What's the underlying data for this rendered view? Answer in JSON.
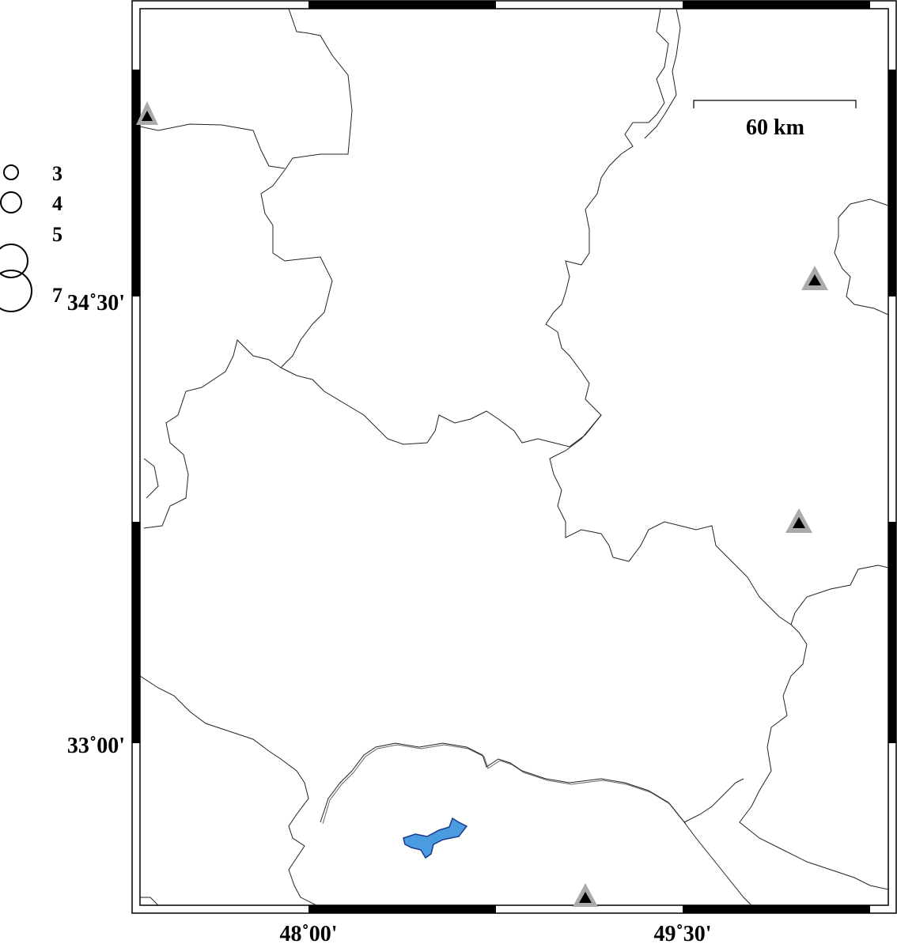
{
  "map": {
    "lat_labels": [
      "34˚30'",
      "33˚00'"
    ],
    "lon_labels": [
      "48˚00'",
      "49˚30'"
    ],
    "scale_bar": {
      "label": "60 km"
    },
    "legend": {
      "magnitudes": [
        "3",
        "4",
        "5",
        "7"
      ]
    },
    "stations": [
      {
        "id": "station-nw"
      },
      {
        "id": "station-ne"
      },
      {
        "id": "station-e"
      },
      {
        "id": "station-s"
      }
    ],
    "colors": {
      "station_outer": "#aaaaaa",
      "station_inner": "#000000",
      "lake_fill": "#4a9be0",
      "lake_stroke": "#1a3a8a",
      "boundary": "#222222"
    }
  }
}
